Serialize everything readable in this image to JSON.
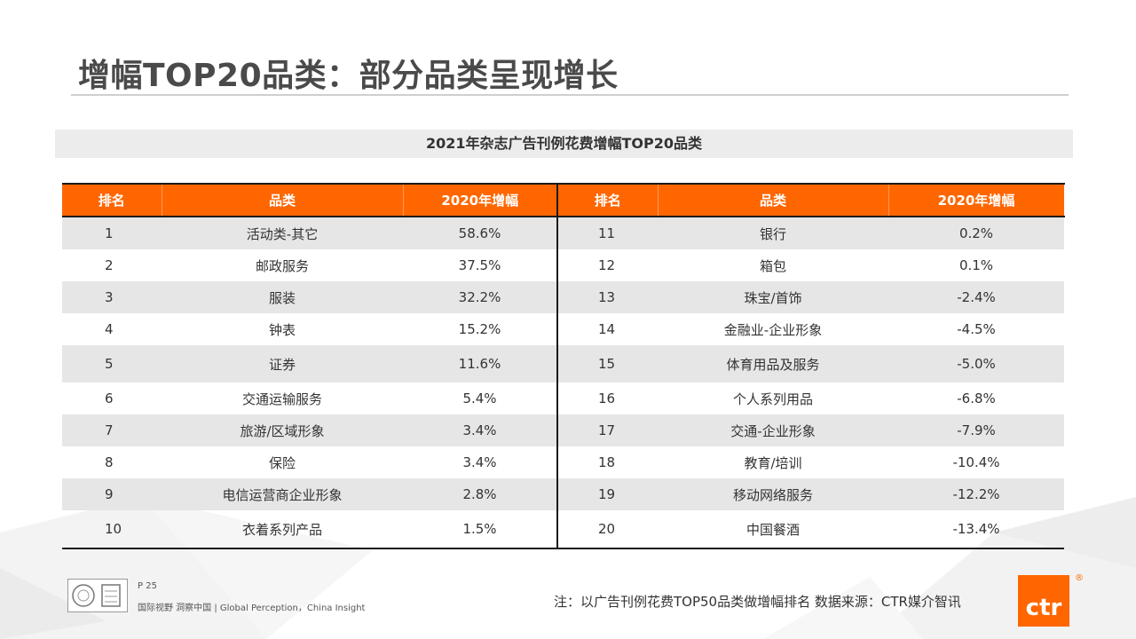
{
  "title": "增幅TOP20品类：部分品类呈现增长",
  "subtitle": "2021年杂志广告刊例花费增幅TOP20品类",
  "table": {
    "headers": [
      "排名",
      "品类",
      "2020年增幅",
      "排名",
      "品类",
      "2020年增幅"
    ],
    "rows": [
      {
        "rank_a": "1",
        "cat_a": "活动类-其它",
        "growth_a": "58.6%",
        "rank_b": "11",
        "cat_b": "银行",
        "growth_b": "0.2%"
      },
      {
        "rank_a": "2",
        "cat_a": "邮政服务",
        "growth_a": "37.5%",
        "rank_b": "12",
        "cat_b": "箱包",
        "growth_b": "0.1%"
      },
      {
        "rank_a": "3",
        "cat_a": "服装",
        "growth_a": "32.2%",
        "rank_b": "13",
        "cat_b": "珠宝/首饰",
        "growth_b": "-2.4%"
      },
      {
        "rank_a": "4",
        "cat_a": "钟表",
        "growth_a": "15.2%",
        "rank_b": "14",
        "cat_b": "金融业-企业形象",
        "growth_b": "-4.5%"
      },
      {
        "rank_a": "5",
        "cat_a": "证券",
        "growth_a": "11.6%",
        "rank_b": "15",
        "cat_b": "体育用品及服务",
        "growth_b": "-5.0%"
      },
      {
        "rank_a": "6",
        "cat_a": "交通运输服务",
        "growth_a": "5.4%",
        "rank_b": "16",
        "cat_b": "个人系列用品",
        "growth_b": "-6.8%"
      },
      {
        "rank_a": "7",
        "cat_a": "旅游/区域形象",
        "growth_a": "3.4%",
        "rank_b": "17",
        "cat_b": "交通-企业形象",
        "growth_b": "-7.9%"
      },
      {
        "rank_a": "8",
        "cat_a": "保险",
        "growth_a": "3.4%",
        "rank_b": "18",
        "cat_b": "教育/培训",
        "growth_b": "-10.4%"
      },
      {
        "rank_a": "9",
        "cat_a": "电信运营商企业形象",
        "growth_a": "2.8%",
        "rank_b": "19",
        "cat_b": "移动网络服务",
        "growth_b": "-12.2%"
      },
      {
        "rank_a": "10",
        "cat_a": "衣着系列产品",
        "growth_a": "1.5%",
        "rank_b": "20",
        "cat_b": "中国餐酒",
        "growth_b": "-13.4%"
      }
    ]
  },
  "footer": {
    "page": "P 25",
    "tagline": "国际视野  洞察中国 |  Global Perception，China Insight",
    "note": "注：以广告刊例花费TOP50品类做增幅排名  数据来源：CTR媒介智讯",
    "logo_text": "ctr",
    "logo_reg": "®"
  },
  "colors": {
    "accent": "#ff6600",
    "row_alt": "#e6e6e6",
    "title": "#4a4a4a"
  }
}
